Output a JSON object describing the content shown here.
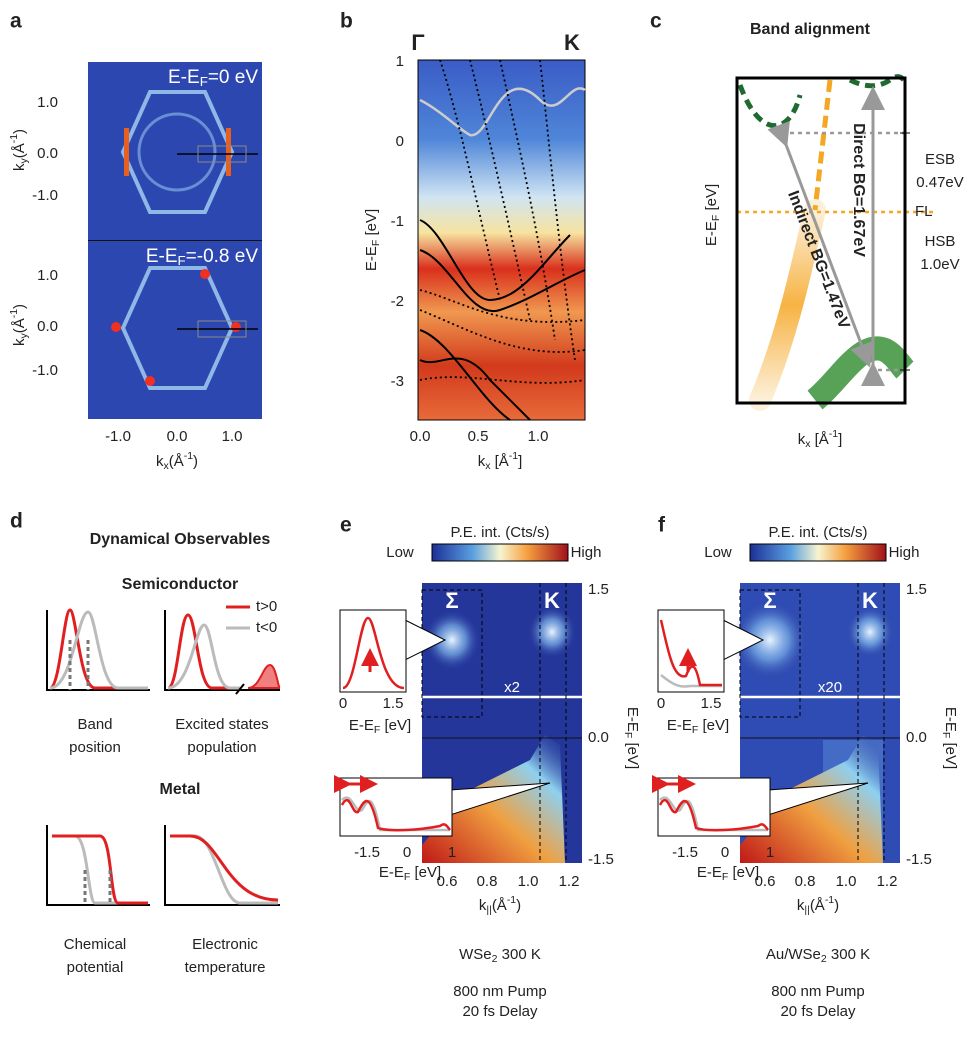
{
  "panel_a": {
    "label": "a",
    "map_top": {
      "base": "E-E",
      "sub": "F",
      "mid": "=0 eV"
    },
    "map_bottom": {
      "base": "E-E",
      "sub": "F",
      "mid": "=-0.8 eV"
    },
    "yticks": [
      "1.0",
      "0.0",
      "-1.0"
    ],
    "ylabel": {
      "base": "k",
      "sub": "y",
      "mid": "(Å",
      "sup": "-1",
      "end": ")"
    },
    "xticks": [
      "-1.0",
      "0.0",
      "1.0"
    ],
    "xlabel": {
      "base": "k",
      "sub": "x",
      "mid": "(Å",
      "sup": "-1",
      "end": ")"
    }
  },
  "panel_b": {
    "label": "b",
    "gamma": "Γ",
    "k_point": "K",
    "yticks": [
      "1",
      "0",
      "-1",
      "-2",
      "-3"
    ],
    "ylabel": {
      "base": "E-E",
      "sub": "F",
      "mid": " [eV]"
    },
    "xticks": [
      "0.0",
      "0.5",
      "1.0"
    ],
    "xlabel": {
      "base": "k",
      "sub": "x",
      "mid": " [Å",
      "sup": "-1",
      "end": "]"
    }
  },
  "panel_c": {
    "label": "c",
    "title": "Band alignment",
    "direct": "Direct BG=1.67eV",
    "indirect": "Indirect BG=1.47eV",
    "esb": "ESB",
    "esb_value": "0.47eV",
    "fl": "FL",
    "hsb": "HSB",
    "hsb_value": "1.0eV",
    "ylabel": {
      "base": "E-E",
      "sub": "F",
      "mid": " [eV]"
    },
    "xlabel": {
      "base": "k",
      "sub": "x",
      "mid": " [Å",
      "sup": "-1",
      "end": "]"
    }
  },
  "panel_d": {
    "label": "d",
    "title": "Dynamical Observables",
    "semiconductor": "Semiconductor",
    "legend_pos": "t>0",
    "legend_neg": "t<0",
    "band_1": "Band",
    "band_2": "position",
    "excited_1": "Excited states",
    "excited_2": "population",
    "metal": "Metal",
    "chem_1": "Chemical",
    "chem_2": "potential",
    "elec_1": "Electronic",
    "elec_2": "temperature"
  },
  "panel_e": {
    "label": "e",
    "colorbar_title": "P.E. int. (Cts/s)",
    "colorbar_low": "Low",
    "colorbar_high": "High",
    "sigma": "Σ",
    "k_point": "K",
    "scale": "x2",
    "yticks": [
      "1.5",
      "0.0",
      "-1.5"
    ],
    "ylabel": {
      "base": "E-E",
      "sub": "F",
      "mid": " [eV]"
    },
    "xticks": [
      "0.6",
      "0.8",
      "1.0",
      "1.2"
    ],
    "xlabel": {
      "base": "k",
      "sub": "||",
      "mid": "(Å",
      "sup": "-1",
      "end": ")"
    },
    "inset_top_ticks": [
      "0",
      "1.5"
    ],
    "inset_top_xlabel": {
      "base": "E-E",
      "sub": "F",
      "mid": " [eV]"
    },
    "inset_bottom_ticks": [
      "-1.5",
      "0",
      "1"
    ],
    "inset_bottom_xlabel": {
      "base": "E-E",
      "sub": "F",
      "mid": " [eV]"
    },
    "sample": {
      "base": "WSe",
      "sub": "2",
      "mid": "  300 K"
    },
    "pump": "800 nm Pump",
    "delay": "20 fs Delay"
  },
  "panel_f": {
    "label": "f",
    "colorbar_title": "P.E. int. (Cts/s)",
    "colorbar_low": "Low",
    "colorbar_high": "High",
    "sigma": "Σ",
    "k_point": "K",
    "scale": "x20",
    "yticks": [
      "1.5",
      "0.0",
      "-1.5"
    ],
    "ylabel": {
      "base": "E-E",
      "sub": "F",
      "mid": " [eV]"
    },
    "xticks": [
      "0.6",
      "0.8",
      "1.0",
      "1.2"
    ],
    "xlabel": {
      "base": "k",
      "sub": "||",
      "mid": "(Å",
      "sup": "-1",
      "end": ")"
    },
    "inset_top_ticks": [
      "0",
      "1.5"
    ],
    "inset_top_xlabel": {
      "base": "E-E",
      "sub": "F",
      "mid": " [eV]"
    },
    "inset_bottom_ticks": [
      "-1.5",
      "0",
      "1"
    ],
    "inset_bottom_xlabel": {
      "base": "E-E",
      "sub": "F",
      "mid": " [eV]"
    },
    "sample": {
      "base": "Au/WSe",
      "sub": "2",
      "mid": "  300 K"
    },
    "pump": "800 nm Pump",
    "delay": "20 fs Delay"
  }
}
